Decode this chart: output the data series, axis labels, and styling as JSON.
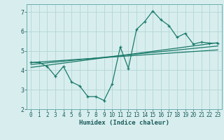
{
  "main_x": [
    0,
    1,
    2,
    3,
    4,
    5,
    6,
    7,
    8,
    9,
    10,
    11,
    12,
    13,
    14,
    15,
    16,
    17,
    18,
    19,
    20,
    21,
    22,
    23
  ],
  "main_y": [
    4.4,
    4.4,
    4.2,
    3.7,
    4.2,
    3.4,
    3.2,
    2.65,
    2.65,
    2.45,
    3.3,
    5.2,
    4.1,
    6.1,
    6.5,
    7.05,
    6.6,
    6.3,
    5.7,
    5.9,
    5.35,
    5.45,
    5.4,
    5.4
  ],
  "trend1_x": [
    0,
    23
  ],
  "trend1_y": [
    4.4,
    5.05
  ],
  "trend2_x": [
    0,
    23
  ],
  "trend2_y": [
    4.3,
    5.25
  ],
  "trend3_x": [
    0,
    23
  ],
  "trend3_y": [
    4.15,
    5.42
  ],
  "color": "#1a7a6a",
  "bg_color": "#d8eeee",
  "grid_color": "#b8d8d8",
  "xlabel": "Humidex (Indice chaleur)",
  "xlim": [
    -0.5,
    23.5
  ],
  "ylim": [
    2,
    7.4
  ],
  "yticks": [
    2,
    3,
    4,
    5,
    6,
    7
  ],
  "xticks": [
    0,
    1,
    2,
    3,
    4,
    5,
    6,
    7,
    8,
    9,
    10,
    11,
    12,
    13,
    14,
    15,
    16,
    17,
    18,
    19,
    20,
    21,
    22,
    23
  ]
}
